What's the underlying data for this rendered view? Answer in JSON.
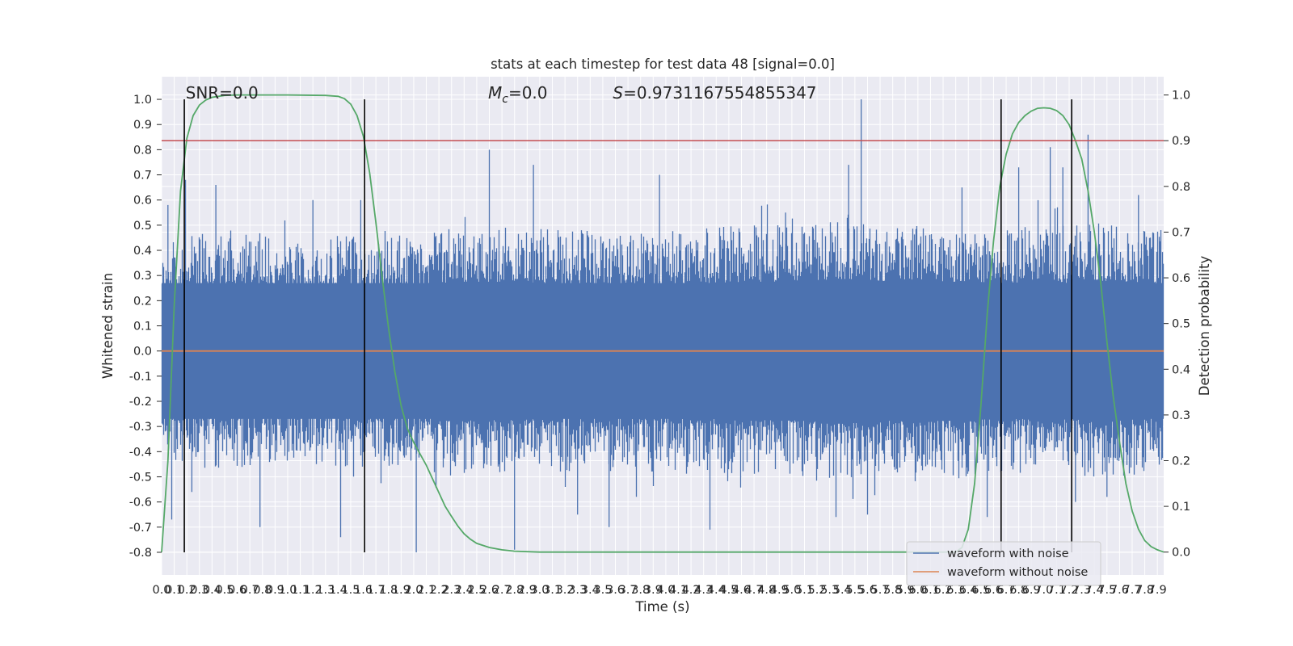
{
  "chart_data": {
    "type": "line",
    "title": "stats at each timestep for test data 48 [signal=0.0]",
    "xlabel": "Time (s)",
    "ylabel": "Whitened strain",
    "y2label": "Detection probability",
    "xlim": [
      0.0,
      7.95
    ],
    "ylim": [
      -0.89,
      1.09
    ],
    "y2lim": [
      -0.05,
      1.04
    ],
    "x_ticks": [
      "0.0",
      "0.1",
      "0.2",
      "0.3",
      "0.4",
      "0.5",
      "0.6",
      "0.7",
      "0.8",
      "0.9",
      "1.0",
      "1.1",
      "1.2",
      "1.3",
      "1.4",
      "1.5",
      "1.6",
      "1.7",
      "1.8",
      "1.9",
      "2.0",
      "2.1",
      "2.2",
      "2.3",
      "2.4",
      "2.5",
      "2.6",
      "2.7",
      "2.8",
      "2.9",
      "3.0",
      "3.1",
      "3.2",
      "3.3",
      "3.4",
      "3.5",
      "3.6",
      "3.7",
      "3.8",
      "3.9",
      "4.0",
      "4.1",
      "4.2",
      "4.3",
      "4.4",
      "4.5",
      "4.6",
      "4.7",
      "4.8",
      "4.9",
      "5.0",
      "5.1",
      "5.2",
      "5.3",
      "5.4",
      "5.5",
      "5.6",
      "5.7",
      "5.8",
      "5.9",
      "6.0",
      "6.1",
      "6.2",
      "6.3",
      "6.4",
      "6.5",
      "6.6",
      "6.7",
      "6.8",
      "6.9",
      "7.0",
      "7.1",
      "7.2",
      "7.3",
      "7.4",
      "7.5",
      "7.6",
      "7.7",
      "7.8",
      "7.9"
    ],
    "y_ticks": [
      "-0.8",
      "-0.7",
      "-0.6",
      "-0.5",
      "-0.4",
      "-0.3",
      "-0.2",
      "-0.1",
      "0.0",
      "0.1",
      "0.2",
      "0.3",
      "0.4",
      "0.5",
      "0.6",
      "0.7",
      "0.8",
      "0.9",
      "1.0"
    ],
    "y2_ticks": [
      "0.0",
      "0.1",
      "0.2",
      "0.3",
      "0.4",
      "0.5",
      "0.6",
      "0.7",
      "0.8",
      "0.9",
      "1.0"
    ],
    "annotations": [
      {
        "id": "snr",
        "text": "SNR=0.0",
        "x": 0.19,
        "y": 1.0
      },
      {
        "id": "mc",
        "text": "=0.0",
        "label": "M",
        "sub": "c",
        "x": 2.59,
        "y": 1.0
      },
      {
        "id": "s",
        "text": "=0.9731167554855347",
        "label": "S",
        "x": 3.58,
        "y": 1.0
      }
    ],
    "threshold": {
      "y2": 0.9,
      "color": "#c44e52"
    },
    "vlines": [
      0.18,
      1.61,
      6.66,
      7.22
    ],
    "vline_range": [
      -0.8,
      1.0
    ],
    "series": [
      {
        "name": "waveform with noise",
        "color": "#4c72b0",
        "style": "noise",
        "core_band": [
          -0.27,
          0.27
        ],
        "envelope": [
          [
            0.0,
            0.42
          ],
          [
            0.2,
            0.46
          ],
          [
            0.4,
            0.47
          ],
          [
            0.6,
            0.46
          ],
          [
            0.8,
            0.47
          ],
          [
            1.0,
            0.46
          ],
          [
            1.2,
            0.45
          ],
          [
            1.4,
            0.46
          ],
          [
            1.6,
            0.46
          ],
          [
            1.8,
            0.48
          ],
          [
            2.0,
            0.46
          ],
          [
            2.2,
            0.49
          ],
          [
            2.4,
            0.5
          ],
          [
            2.6,
            0.5
          ],
          [
            2.8,
            0.5
          ],
          [
            3.0,
            0.49
          ],
          [
            3.2,
            0.48
          ],
          [
            3.4,
            0.48
          ],
          [
            3.6,
            0.48
          ],
          [
            3.8,
            0.49
          ],
          [
            4.0,
            0.48
          ],
          [
            4.2,
            0.49
          ],
          [
            4.4,
            0.49
          ],
          [
            4.6,
            0.5
          ],
          [
            4.8,
            0.5
          ],
          [
            5.0,
            0.5
          ],
          [
            5.2,
            0.51
          ],
          [
            5.4,
            0.52
          ],
          [
            5.6,
            0.51
          ],
          [
            5.8,
            0.5
          ],
          [
            6.0,
            0.52
          ],
          [
            6.2,
            0.5
          ],
          [
            6.4,
            0.5
          ],
          [
            6.6,
            0.49
          ],
          [
            6.8,
            0.49
          ],
          [
            7.0,
            0.5
          ],
          [
            7.2,
            0.49
          ],
          [
            7.4,
            0.51
          ],
          [
            7.6,
            0.5
          ],
          [
            7.8,
            0.49
          ],
          [
            7.95,
            0.48
          ]
        ],
        "peaks": [
          [
            0.05,
            0.58
          ],
          [
            0.08,
            -0.67
          ],
          [
            0.19,
            0.68
          ],
          [
            0.24,
            -0.56
          ],
          [
            0.43,
            0.66
          ],
          [
            0.78,
            -0.7
          ],
          [
            1.2,
            0.6
          ],
          [
            1.42,
            -0.74
          ],
          [
            1.58,
            0.6
          ],
          [
            2.02,
            -0.8
          ],
          [
            2.6,
            0.8
          ],
          [
            2.8,
            -0.79
          ],
          [
            2.95,
            0.74
          ],
          [
            3.3,
            -0.65
          ],
          [
            3.55,
            -0.7
          ],
          [
            3.95,
            0.7
          ],
          [
            4.35,
            -0.71
          ],
          [
            4.95,
            0.55
          ],
          [
            5.35,
            -0.66
          ],
          [
            5.45,
            0.74
          ],
          [
            5.55,
            1.0
          ],
          [
            5.6,
            -0.65
          ],
          [
            6.35,
            0.65
          ],
          [
            6.55,
            -0.66
          ],
          [
            6.8,
            0.73
          ],
          [
            7.05,
            0.81
          ],
          [
            7.15,
            0.73
          ],
          [
            7.25,
            -0.6
          ],
          [
            7.35,
            0.86
          ],
          [
            7.5,
            -0.58
          ],
          [
            7.75,
            0.62
          ]
        ]
      },
      {
        "name": "waveform without noise",
        "color": "#dd8452",
        "style": "line",
        "points": [
          [
            0.0,
            0.0
          ],
          [
            7.95,
            0.0
          ]
        ]
      },
      {
        "name": "Detection probability",
        "color": "#55a868",
        "style": "line",
        "axis": "right",
        "points": [
          [
            0.0,
            0.0
          ],
          [
            0.05,
            0.2
          ],
          [
            0.1,
            0.54
          ],
          [
            0.15,
            0.79
          ],
          [
            0.2,
            0.905
          ],
          [
            0.25,
            0.955
          ],
          [
            0.3,
            0.978
          ],
          [
            0.35,
            0.989
          ],
          [
            0.4,
            0.995
          ],
          [
            0.5,
            0.999
          ],
          [
            0.6,
            1.0
          ],
          [
            1.0,
            1.0
          ],
          [
            1.3,
            0.999
          ],
          [
            1.4,
            0.997
          ],
          [
            1.45,
            0.992
          ],
          [
            1.5,
            0.98
          ],
          [
            1.55,
            0.955
          ],
          [
            1.6,
            0.91
          ],
          [
            1.65,
            0.83
          ],
          [
            1.7,
            0.72
          ],
          [
            1.75,
            0.6
          ],
          [
            1.8,
            0.49
          ],
          [
            1.85,
            0.395
          ],
          [
            1.9,
            0.32
          ],
          [
            1.95,
            0.27
          ],
          [
            2.0,
            0.24
          ],
          [
            2.05,
            0.215
          ],
          [
            2.1,
            0.19
          ],
          [
            2.15,
            0.16
          ],
          [
            2.2,
            0.13
          ],
          [
            2.25,
            0.1
          ],
          [
            2.3,
            0.078
          ],
          [
            2.35,
            0.057
          ],
          [
            2.4,
            0.04
          ],
          [
            2.45,
            0.028
          ],
          [
            2.5,
            0.019
          ],
          [
            2.6,
            0.01
          ],
          [
            2.7,
            0.005
          ],
          [
            2.8,
            0.002
          ],
          [
            3.0,
            0.0
          ],
          [
            6.3,
            0.0
          ],
          [
            6.35,
            0.01
          ],
          [
            6.4,
            0.05
          ],
          [
            6.45,
            0.15
          ],
          [
            6.5,
            0.32
          ],
          [
            6.55,
            0.52
          ],
          [
            6.6,
            0.68
          ],
          [
            6.65,
            0.8
          ],
          [
            6.7,
            0.87
          ],
          [
            6.75,
            0.915
          ],
          [
            6.8,
            0.94
          ],
          [
            6.85,
            0.955
          ],
          [
            6.9,
            0.965
          ],
          [
            6.95,
            0.971
          ],
          [
            7.0,
            0.972
          ],
          [
            7.05,
            0.971
          ],
          [
            7.1,
            0.966
          ],
          [
            7.15,
            0.955
          ],
          [
            7.2,
            0.935
          ],
          [
            7.25,
            0.9
          ],
          [
            7.3,
            0.86
          ],
          [
            7.35,
            0.79
          ],
          [
            7.4,
            0.7
          ],
          [
            7.45,
            0.59
          ],
          [
            7.5,
            0.46
          ],
          [
            7.55,
            0.34
          ],
          [
            7.6,
            0.24
          ],
          [
            7.65,
            0.15
          ],
          [
            7.7,
            0.09
          ],
          [
            7.75,
            0.05
          ],
          [
            7.8,
            0.025
          ],
          [
            7.85,
            0.012
          ],
          [
            7.9,
            0.005
          ],
          [
            7.95,
            0.0
          ]
        ]
      }
    ],
    "legend": {
      "position": "lower-right",
      "entries": [
        "waveform with noise",
        "waveform without noise"
      ]
    },
    "grid": true,
    "background": "#eaeaf2"
  }
}
